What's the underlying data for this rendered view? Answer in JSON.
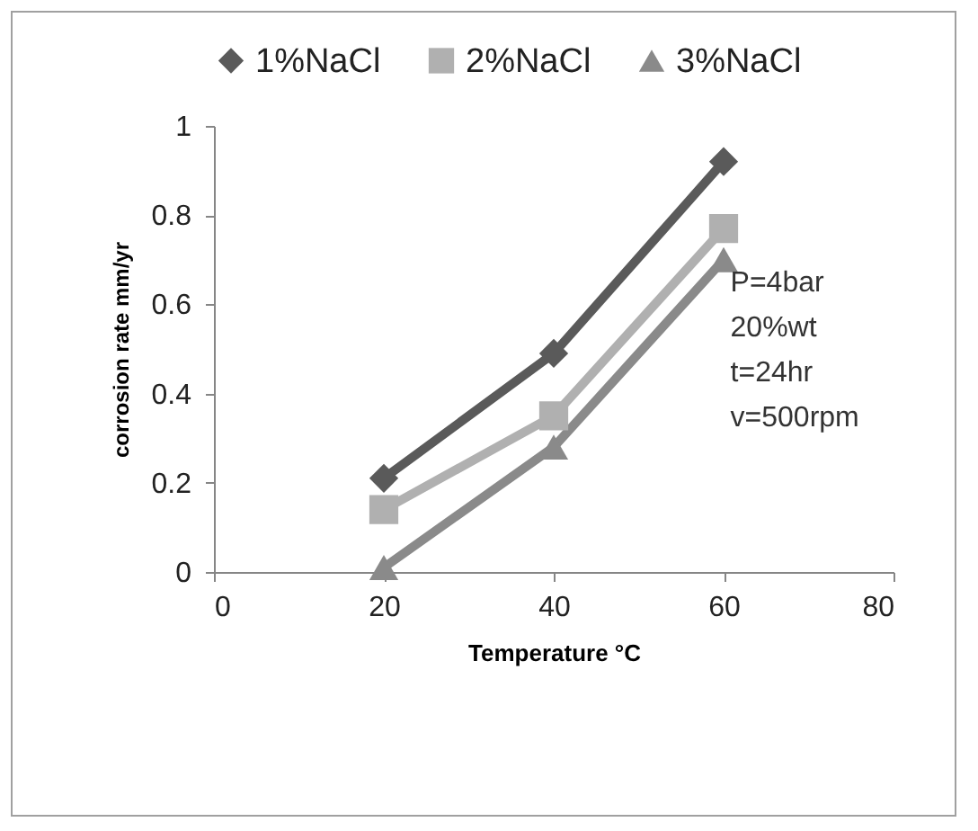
{
  "chart_data": {
    "type": "line",
    "xlabel": "Temperature °C",
    "ylabel": "corrosion rate mm/yr",
    "x": [
      20,
      40,
      60
    ],
    "series": [
      {
        "name": "1%NaCl",
        "color": "#5a5a5a",
        "marker": "diamond",
        "values": [
          0.21,
          0.49,
          0.92
        ]
      },
      {
        "name": "2%NaCl",
        "color": "#b0b0b0",
        "marker": "square",
        "values": [
          0.14,
          0.35,
          0.77
        ]
      },
      {
        "name": "3%NaCl",
        "color": "#8a8a8a",
        "marker": "triangle",
        "values": [
          0.01,
          0.28,
          0.7
        ]
      }
    ],
    "xlim": [
      0,
      80
    ],
    "xticks": [
      0,
      20,
      40,
      60,
      80
    ],
    "ylim": [
      0,
      1
    ],
    "yticks": [
      0,
      0.2,
      0.4,
      0.6,
      0.8,
      1
    ],
    "annotations": [
      "P=4bar",
      "20%wt",
      "t=24hr",
      "v=500rpm"
    ],
    "grid": false,
    "legend": "top",
    "line_style": "solid"
  }
}
